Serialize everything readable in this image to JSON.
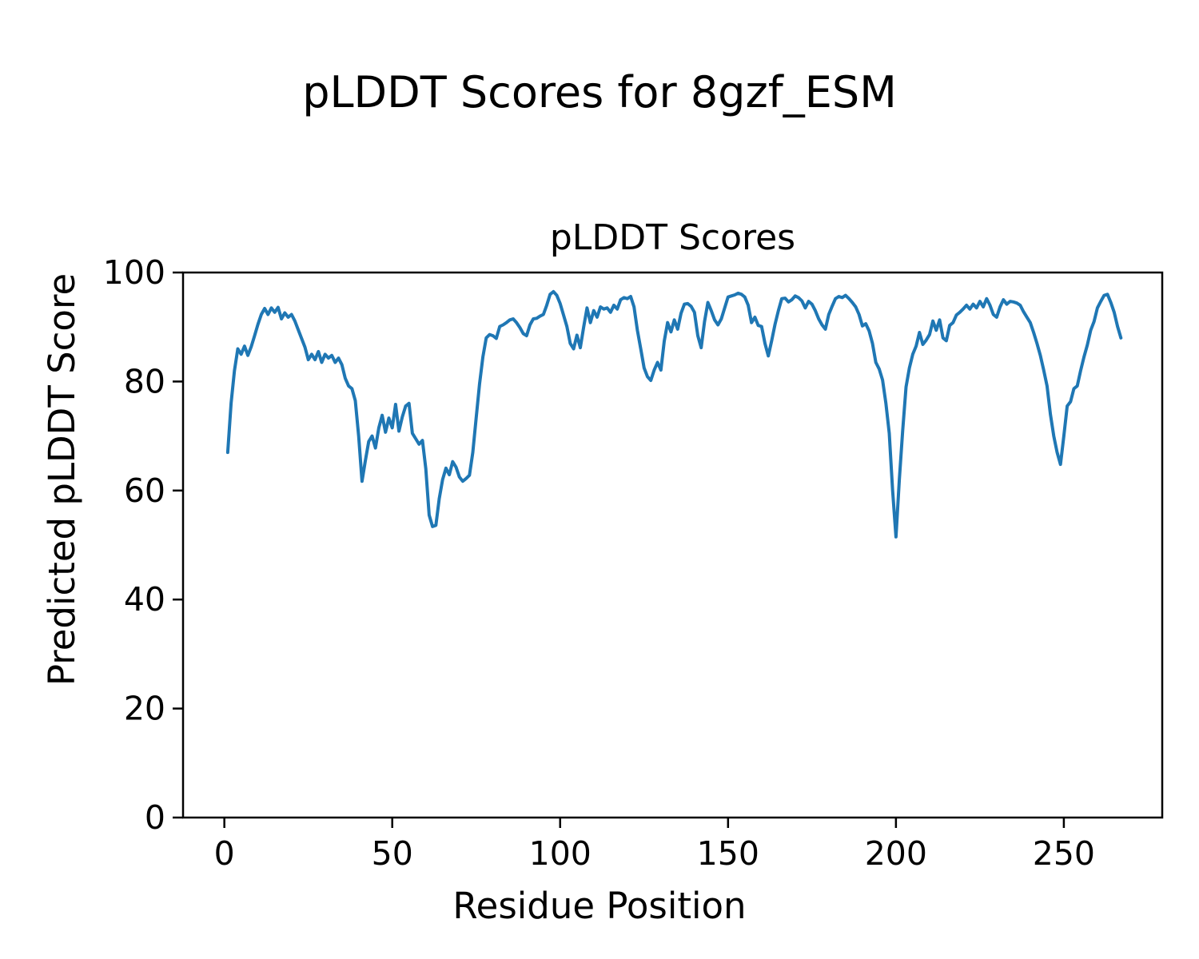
{
  "figure_title": "pLDDT Scores for 8gzf_ESM",
  "colors": {
    "line": "#1f77b4",
    "background": "#ffffff",
    "text": "#000000",
    "spine": "#000000"
  },
  "chart_data": {
    "type": "line",
    "title": "pLDDT Scores",
    "xlabel": "Residue Position",
    "ylabel": "Predicted pLDDT Score",
    "xlim": [
      -12.3,
      279.3
    ],
    "ylim": [
      0,
      100
    ],
    "xticks": [
      0,
      50,
      100,
      150,
      200,
      250
    ],
    "yticks": [
      0,
      20,
      40,
      60,
      80,
      100
    ],
    "grid": false,
    "legend_position": "none",
    "series": [
      {
        "name": "pLDDT",
        "color": "#1f77b4",
        "x_start": 1,
        "values": [
          67.0,
          76.0,
          82.0,
          86.0,
          85.0,
          86.5,
          84.8,
          86.4,
          88.4,
          90.5,
          92.3,
          93.4,
          92.3,
          93.5,
          92.7,
          93.6,
          91.5,
          92.6,
          91.8,
          92.3,
          91.1,
          89.5,
          87.9,
          86.3,
          84.0,
          85.0,
          84.0,
          85.5,
          83.5,
          85.0,
          84.3,
          84.8,
          83.5,
          84.3,
          83.1,
          80.6,
          79.2,
          78.7,
          76.5,
          70.0,
          61.7,
          65.5,
          69.0,
          70.0,
          67.8,
          71.5,
          73.8,
          70.7,
          73.3,
          71.5,
          75.8,
          70.9,
          73.5,
          75.5,
          76.0,
          70.5,
          69.5,
          68.5,
          69.2,
          64.0,
          55.5,
          53.4,
          53.6,
          58.5,
          62.0,
          64.1,
          62.9,
          65.3,
          64.3,
          62.5,
          61.7,
          62.2,
          62.8,
          67.0,
          73.3,
          79.5,
          84.5,
          88.0,
          88.6,
          88.4,
          87.9,
          90.1,
          90.4,
          90.8,
          91.3,
          91.5,
          90.8,
          89.9,
          88.8,
          88.4,
          90.4,
          91.5,
          91.6,
          92.0,
          92.3,
          94.0,
          96.0,
          96.5,
          95.8,
          94.3,
          92.2,
          90.1,
          87.0,
          86.0,
          88.5,
          86.2,
          90.0,
          93.5,
          90.8,
          93.0,
          91.8,
          93.7,
          93.3,
          93.5,
          92.7,
          94.0,
          93.3,
          95.0,
          95.4,
          95.2,
          95.6,
          93.7,
          89.4,
          86.0,
          82.5,
          80.9,
          80.2,
          82.1,
          83.5,
          82.1,
          87.4,
          90.8,
          89.1,
          91.3,
          89.6,
          92.5,
          94.2,
          94.3,
          93.8,
          92.7,
          88.4,
          86.2,
          91.0,
          94.5,
          93.0,
          91.3,
          90.4,
          91.5,
          93.5,
          95.5,
          95.7,
          95.9,
          96.2,
          96.0,
          95.5,
          94.0,
          90.8,
          91.8,
          90.3,
          90.1,
          87.0,
          84.7,
          87.5,
          90.5,
          93.0,
          95.2,
          95.3,
          94.6,
          95.0,
          95.7,
          95.4,
          94.8,
          93.5,
          94.7,
          94.2,
          93.0,
          91.5,
          90.4,
          89.6,
          92.3,
          93.8,
          95.2,
          95.6,
          95.4,
          95.8,
          95.2,
          94.5,
          93.7,
          92.3,
          90.2,
          90.6,
          89.3,
          87.0,
          83.5,
          82.3,
          80.3,
          76.0,
          70.5,
          60.0,
          51.5,
          62.0,
          71.0,
          79.0,
          82.5,
          85.0,
          86.5,
          89.0,
          86.8,
          87.6,
          88.6,
          91.1,
          89.4,
          91.3,
          88.0,
          87.5,
          90.3,
          90.8,
          92.2,
          92.7,
          93.3,
          94.0,
          93.3,
          94.2,
          93.5,
          94.7,
          93.7,
          95.2,
          94.0,
          92.3,
          91.8,
          93.7,
          95.0,
          94.2,
          94.7,
          94.6,
          94.4,
          94.0,
          92.8,
          91.8,
          90.8,
          89.0,
          87.0,
          84.8,
          82.1,
          79.2,
          74.0,
          70.0,
          67.0,
          64.8,
          70.0,
          75.5,
          76.3,
          78.7,
          79.2,
          82.0,
          84.5,
          86.7,
          89.4,
          91.0,
          93.5,
          94.7,
          95.8,
          96.0,
          94.5,
          92.7,
          90.1,
          88.0
        ]
      }
    ]
  }
}
